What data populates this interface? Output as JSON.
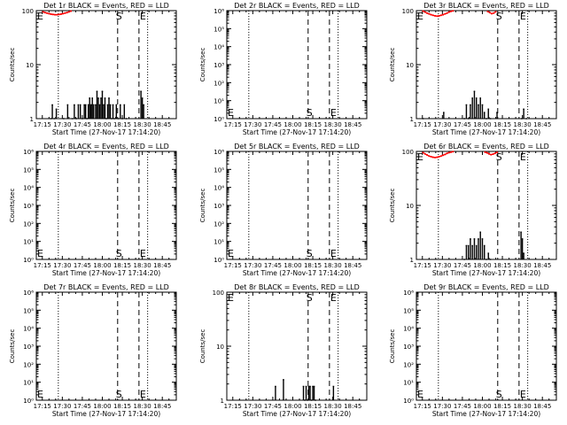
{
  "page": {
    "background": "#ffffff",
    "axis_color": "#000000",
    "events_color": "#000000",
    "lld_color": "#ff0000"
  },
  "xaxis": {
    "ticks": [
      "17:15",
      "17:30",
      "17:45",
      "18:00",
      "18:15",
      "18:30",
      "18:45"
    ],
    "tick_minutes": [
      15,
      30,
      45,
      60,
      75,
      90,
      105
    ],
    "range_minutes": [
      10.5,
      115.5
    ],
    "label": "Start Time (27-Nov-17 17:14:20)"
  },
  "ylabel": "Counts/sec",
  "markers": {
    "dotted_minutes": [
      27,
      94
    ],
    "s_minute": 71.5,
    "e_minute": 87.5,
    "s_label": "S",
    "e_label": "E"
  },
  "chart_data": [
    {
      "type": "line",
      "title": "Det 1r BLACK = Events, RED = LLD",
      "scale": "log",
      "ylim": [
        1,
        100
      ],
      "yticks": [
        1,
        10,
        100
      ],
      "ytick_labels": [
        "1",
        "10",
        "100"
      ],
      "xlabel": "Start Time (27-Nov-17 17:14:20)",
      "ylabel": "Counts/sec",
      "marker_label_pos": "top",
      "series": [
        {
          "name": "LLD",
          "color": "#ff0000",
          "x": [
            15.5,
            17,
            18.5,
            20,
            21.5,
            23,
            24.5,
            26,
            27.5,
            29,
            30.5,
            32,
            33.5,
            35,
            36.5
          ],
          "y": [
            95,
            92,
            90,
            88,
            86,
            85,
            84,
            84,
            85,
            86,
            88,
            90,
            92,
            95,
            98
          ]
        },
        {
          "name": "Events",
          "color": "#000000",
          "x": [
            21.5,
            22.5,
            24,
            25.5,
            31,
            34,
            37.5,
            39,
            40.5,
            42,
            43.5,
            45,
            46.5,
            47.5,
            48.5,
            49.5,
            50.5,
            51.5,
            52.5,
            53.5,
            55,
            56,
            57,
            58,
            59,
            60,
            61,
            62,
            63,
            64,
            65,
            66,
            67,
            68,
            69,
            70.5,
            72,
            73.5,
            75,
            76.5,
            78,
            89,
            90,
            91
          ],
          "y": [
            1,
            1.8,
            1,
            1.5,
            1,
            1.8,
            1,
            1.8,
            1,
            1.8,
            1.8,
            1,
            1.8,
            1.8,
            1,
            1.8,
            2.4,
            1.8,
            2.4,
            1.8,
            1.8,
            3.2,
            2.4,
            1.8,
            2.4,
            3.2,
            1.8,
            2.4,
            1,
            1.8,
            2.4,
            1.8,
            1,
            1.8,
            1,
            1.8,
            1,
            1.8,
            1,
            1.8,
            1,
            3.2,
            2.4,
            1.8
          ]
        }
      ]
    },
    {
      "type": "line",
      "title": "Det 2r BLACK = Events, RED = LLD",
      "scale": "log",
      "ylim": [
        1,
        1000000
      ],
      "yticks": [
        1,
        10,
        100,
        1000,
        10000,
        100000,
        1000000
      ],
      "ytick_labels": [
        "10⁰",
        "10¹",
        "10²",
        "10³",
        "10⁴",
        "10⁵",
        "10⁶"
      ],
      "xlabel": "Start Time (27-Nov-17 17:14:20)",
      "ylabel": "Counts/sec",
      "marker_label_pos": "bottom",
      "series": [
        {
          "name": "LLD",
          "color": "#ff0000",
          "x": [],
          "y": []
        },
        {
          "name": "Events",
          "color": "#000000",
          "x": [],
          "y": []
        }
      ]
    },
    {
      "type": "line",
      "title": "Det 3r BLACK = Events, RED = LLD",
      "scale": "log",
      "ylim": [
        1,
        100
      ],
      "yticks": [
        1,
        10,
        100
      ],
      "ytick_labels": [
        "1",
        "10",
        "100"
      ],
      "xlabel": "Start Time (27-Nov-17 17:14:20)",
      "ylabel": "Counts/sec",
      "marker_label_pos": "top",
      "series": [
        {
          "name": "LLD",
          "color": "#ff0000",
          "x": [
            15.5,
            17,
            18.5,
            20,
            21.5,
            23,
            24.5,
            26,
            27.5,
            29,
            30.5,
            32,
            33.5,
            35,
            36.5,
            38,
            64,
            65.5,
            67,
            68.5,
            70
          ],
          "y": [
            98,
            94,
            90,
            87,
            84,
            82,
            80,
            79,
            80,
            82,
            84,
            87,
            90,
            94,
            97,
            99,
            96,
            92,
            88,
            90,
            95
          ]
        },
        {
          "name": "Events",
          "color": "#000000",
          "x": [
            15.5,
            31,
            46.5,
            48,
            49.5,
            51,
            52.5,
            54,
            55.5,
            57,
            58.5,
            60,
            61.5,
            63,
            64.5,
            66,
            71,
            89.5,
            91,
            93
          ],
          "y": [
            1,
            1.3,
            1,
            1.8,
            1,
            1.8,
            2.4,
            3.2,
            2.4,
            1.8,
            2.4,
            1.8,
            1.3,
            1,
            1.5,
            1,
            1.3,
            1,
            1.5,
            1
          ]
        }
      ]
    },
    {
      "type": "line",
      "title": "Det 4r BLACK = Events, RED = LLD",
      "scale": "log",
      "ylim": [
        1,
        1000000
      ],
      "yticks": [
        1,
        10,
        100,
        1000,
        10000,
        100000,
        1000000
      ],
      "ytick_labels": [
        "10⁰",
        "10¹",
        "10²",
        "10³",
        "10⁴",
        "10⁵",
        "10⁶"
      ],
      "xlabel": "Start Time (27-Nov-17 17:14:20)",
      "ylabel": "Counts/sec",
      "marker_label_pos": "bottom",
      "series": [
        {
          "name": "LLD",
          "color": "#ff0000",
          "x": [],
          "y": []
        },
        {
          "name": "Events",
          "color": "#000000",
          "x": [],
          "y": []
        }
      ]
    },
    {
      "type": "line",
      "title": "Det 5r BLACK = Events, RED = LLD",
      "scale": "log",
      "ylim": [
        1,
        1000000
      ],
      "yticks": [
        1,
        10,
        100,
        1000,
        10000,
        100000,
        1000000
      ],
      "ytick_labels": [
        "10⁰",
        "10¹",
        "10²",
        "10³",
        "10⁴",
        "10⁵",
        "10⁶"
      ],
      "xlabel": "Start Time (27-Nov-17 17:14:20)",
      "ylabel": "Counts/sec",
      "marker_label_pos": "bottom",
      "series": [
        {
          "name": "LLD",
          "color": "#ff0000",
          "x": [],
          "y": []
        },
        {
          "name": "Events",
          "color": "#000000",
          "x": [],
          "y": []
        }
      ]
    },
    {
      "type": "line",
      "title": "Det 6r BLACK = Events, RED = LLD",
      "scale": "log",
      "ylim": [
        1,
        100
      ],
      "yticks": [
        1,
        10,
        100
      ],
      "ytick_labels": [
        "1",
        "10",
        "100"
      ],
      "xlabel": "Start Time (27-Nov-17 17:14:20)",
      "ylabel": "Counts/sec",
      "marker_label_pos": "top",
      "series": [
        {
          "name": "LLD",
          "color": "#ff0000",
          "x": [
            15.5,
            17,
            18.5,
            20,
            21.5,
            23,
            24.5,
            26,
            27.5,
            29,
            30.5,
            32,
            33.5,
            35,
            36.5,
            38,
            62,
            63.5,
            65,
            66.5,
            68,
            69.5,
            71
          ],
          "y": [
            95,
            90,
            86,
            82,
            80,
            78,
            77,
            78,
            80,
            82,
            85,
            88,
            92,
            95,
            97,
            99,
            97,
            94,
            90,
            87,
            89,
            92,
            96
          ]
        },
        {
          "name": "Events",
          "color": "#000000",
          "x": [
            46.5,
            48,
            49.5,
            51,
            52.5,
            54,
            55.5,
            57,
            58.5,
            60,
            61.5,
            63,
            64.5,
            66,
            89,
            90,
            91
          ],
          "y": [
            1,
            1.8,
            1.8,
            2.4,
            1.8,
            2.4,
            1.8,
            2.4,
            3.2,
            2.4,
            1.8,
            1,
            1.3,
            1,
            3.2,
            2.4,
            1.3
          ]
        }
      ]
    },
    {
      "type": "line",
      "title": "Det 7r BLACK = Events, RED = LLD",
      "scale": "log",
      "ylim": [
        1,
        1000000
      ],
      "yticks": [
        1,
        10,
        100,
        1000,
        10000,
        100000,
        1000000
      ],
      "ytick_labels": [
        "10⁰",
        "10¹",
        "10²",
        "10³",
        "10⁴",
        "10⁵",
        "10⁶"
      ],
      "xlabel": "Start Time (27-Nov-17 17:14:20)",
      "ylabel": "Counts/sec",
      "marker_label_pos": "bottom",
      "series": [
        {
          "name": "LLD",
          "color": "#ff0000",
          "x": [],
          "y": []
        },
        {
          "name": "Events",
          "color": "#000000",
          "x": [],
          "y": []
        }
      ]
    },
    {
      "type": "line",
      "title": "Det 8r BLACK = Events, RED = LLD",
      "scale": "log",
      "ylim": [
        1,
        100
      ],
      "yticks": [
        1,
        10,
        100
      ],
      "ytick_labels": [
        "1",
        "10",
        "100"
      ],
      "xlabel": "Start Time (27-Nov-17 17:14:20)",
      "ylabel": "Counts/sec",
      "marker_label_pos": "top",
      "series": [
        {
          "name": "LLD",
          "color": "#ff0000",
          "x": [],
          "y": []
        },
        {
          "name": "Events",
          "color": "#000000",
          "x": [
            47,
            53,
            68,
            69,
            70,
            71,
            72,
            73,
            74,
            75,
            76,
            77,
            90.5
          ],
          "y": [
            1.8,
            2.4,
            1.8,
            1,
            1.8,
            1,
            1.8,
            1.8,
            1,
            1.8,
            1.8,
            1,
            1.8
          ]
        }
      ]
    },
    {
      "type": "line",
      "title": "Det 9r BLACK = Events, RED = LLD",
      "scale": "log",
      "ylim": [
        1,
        1000000
      ],
      "yticks": [
        1,
        10,
        100,
        1000,
        10000,
        100000,
        1000000
      ],
      "ytick_labels": [
        "10⁰",
        "10¹",
        "10²",
        "10³",
        "10⁴",
        "10⁵",
        "10⁶"
      ],
      "xlabel": "Start Time (27-Nov-17 17:14:20)",
      "ylabel": "Counts/sec",
      "marker_label_pos": "bottom",
      "series": [
        {
          "name": "LLD",
          "color": "#ff0000",
          "x": [],
          "y": []
        },
        {
          "name": "Events",
          "color": "#000000",
          "x": [],
          "y": []
        }
      ]
    }
  ]
}
